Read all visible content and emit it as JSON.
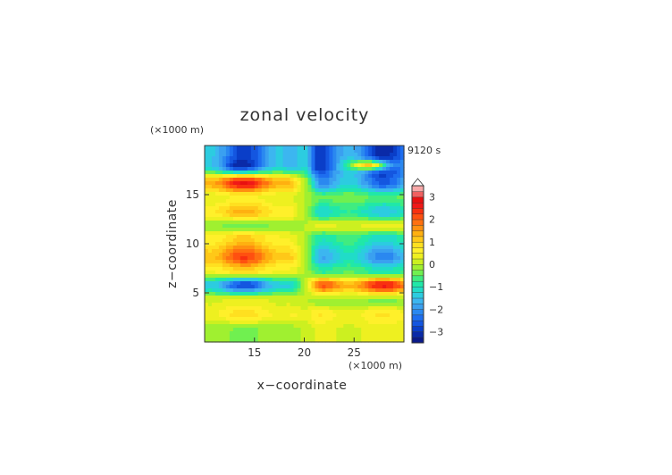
{
  "chart_data": {
    "type": "heatmap",
    "title": "zonal velocity",
    "xlabel": "x−coordinate",
    "ylabel": "z−coordinate",
    "x_units": "(×1000 m)",
    "y_units": "(×1000 m)",
    "time_label": "9120 s",
    "xlim": [
      10,
      30
    ],
    "ylim": [
      0,
      20
    ],
    "x_ticks": [
      15,
      20,
      25
    ],
    "y_ticks": [
      5,
      10,
      15
    ],
    "x_tick_labels": [
      "15",
      "20",
      "25"
    ],
    "y_tick_labels": [
      "5",
      "10",
      "15"
    ],
    "colorbar": {
      "levels": [
        -3.5,
        -3.25,
        -3.0,
        -2.75,
        -2.5,
        -2.25,
        -2.0,
        -1.75,
        -1.5,
        -1.25,
        -1.0,
        -0.75,
        -0.5,
        -0.25,
        0.0,
        0.25,
        0.5,
        0.75,
        1.0,
        1.25,
        1.5,
        1.75,
        2.0,
        2.25,
        2.5,
        2.75,
        3.0,
        3.25,
        3.5
      ],
      "ticks": [
        -3,
        -2,
        -1,
        0,
        1,
        2,
        3
      ],
      "tick_labels": [
        "−3",
        "−2",
        "−1",
        "0",
        "1",
        "2",
        "3"
      ],
      "colors": [
        "#0a1a8a",
        "#0a2aa8",
        "#0a3ec8",
        "#1456e0",
        "#1e6ef0",
        "#2a88f0",
        "#3aa0f0",
        "#3cb6f0",
        "#2ccce0",
        "#20dcc8",
        "#20e8a8",
        "#40ec80",
        "#70f050",
        "#a0f030",
        "#ccf020",
        "#eef020",
        "#fff02a",
        "#ffe020",
        "#ffc818",
        "#ffb010",
        "#ff9010",
        "#ff7010",
        "#ff5010",
        "#f83010",
        "#f01818",
        "#e81010",
        "#f06060",
        "#f8a8a8"
      ],
      "extend_max_color": "#ffffff",
      "extend_min_color": "#0a1a6a"
    },
    "field_layers": [
      {
        "z": 18.0,
        "left": -2.9,
        "right": -3.2,
        "hotspot_x": 13.0,
        "hotspot_v": -3.6,
        "hotspot_x2": 26.5,
        "hotspot_v2": 3.5
      },
      {
        "z": 16.2,
        "left": 2.8,
        "right": -2.6
      },
      {
        "z": 14.7,
        "left": 0.6,
        "right": -0.6
      },
      {
        "z": 13.2,
        "left": 1.4,
        "right": -1.5
      },
      {
        "z": 11.8,
        "left": -0.4,
        "right": 0.4
      },
      {
        "z": 10.6,
        "left": 1.1,
        "right": -1.2
      },
      {
        "z": 8.6,
        "left": 2.3,
        "right": -2.2
      },
      {
        "z": 7.2,
        "left": 1.0,
        "right": -1.0
      },
      {
        "z": 5.8,
        "left": -2.8,
        "right": 2.6
      },
      {
        "z": 4.2,
        "left": 0.4,
        "right": -0.3
      },
      {
        "z": 2.8,
        "left": 0.9,
        "right": 0.8
      },
      {
        "z": 1.2,
        "left": -0.3,
        "right": 0.4
      }
    ]
  }
}
